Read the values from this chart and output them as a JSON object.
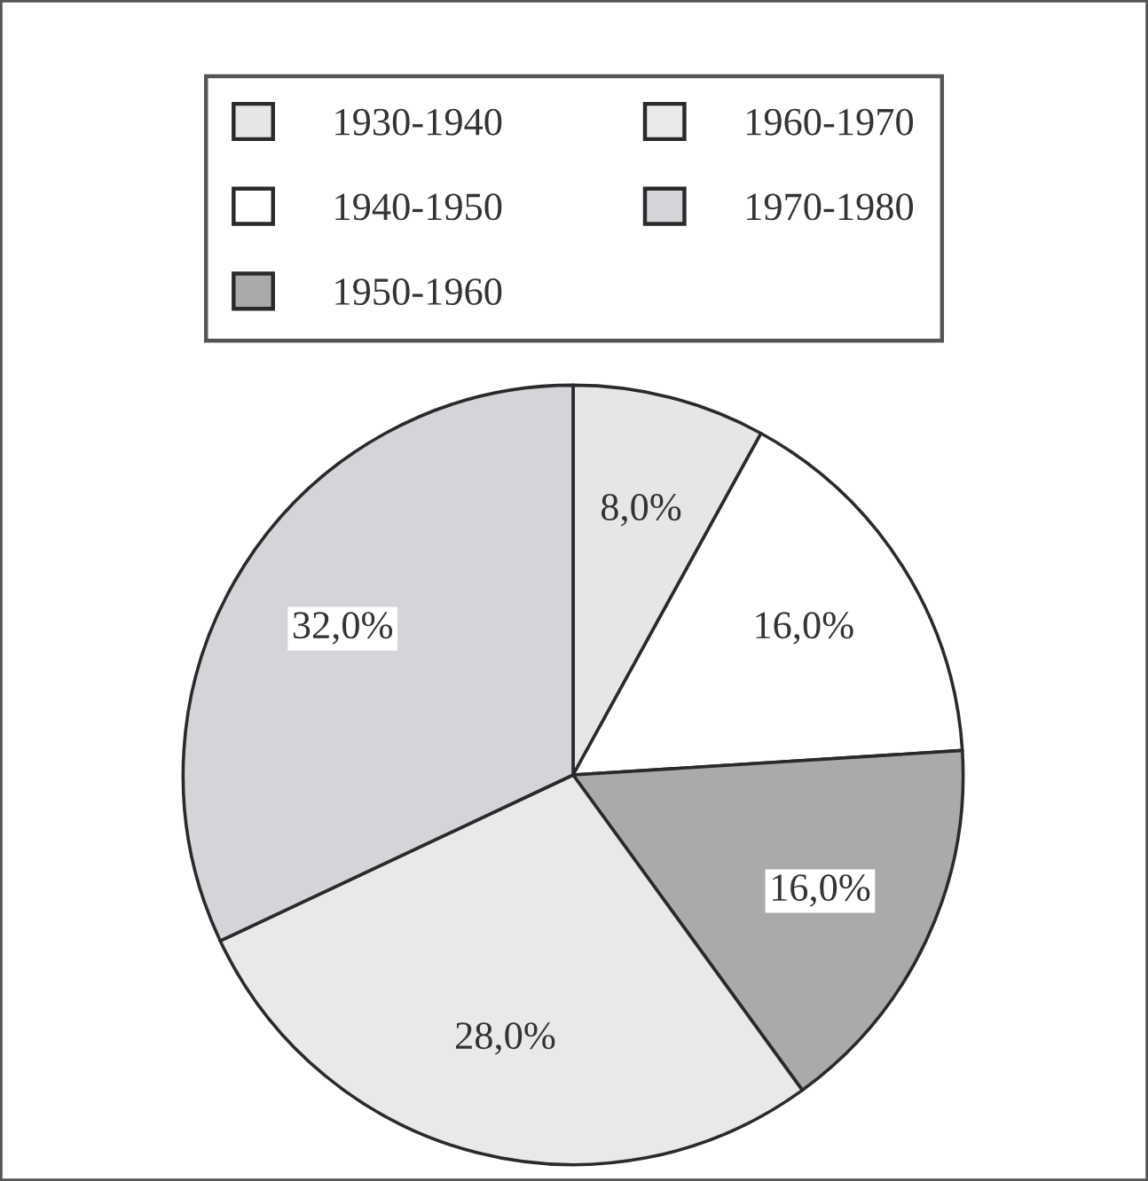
{
  "chart_data": {
    "type": "pie",
    "categories": [
      "1930-1940",
      "1940-1950",
      "1950-1960",
      "1960-1970",
      "1970-1980"
    ],
    "values": [
      8,
      16,
      16,
      28,
      32
    ],
    "colors": [
      "#e4e6e8",
      "#ffffff",
      "#a9aaac",
      "#e8e9ea",
      "#d3d5d8"
    ],
    "value_labels": [
      "8,0%",
      "16,0%",
      "16,0%",
      "28,0%",
      "32,0%"
    ],
    "legend": "top"
  }
}
